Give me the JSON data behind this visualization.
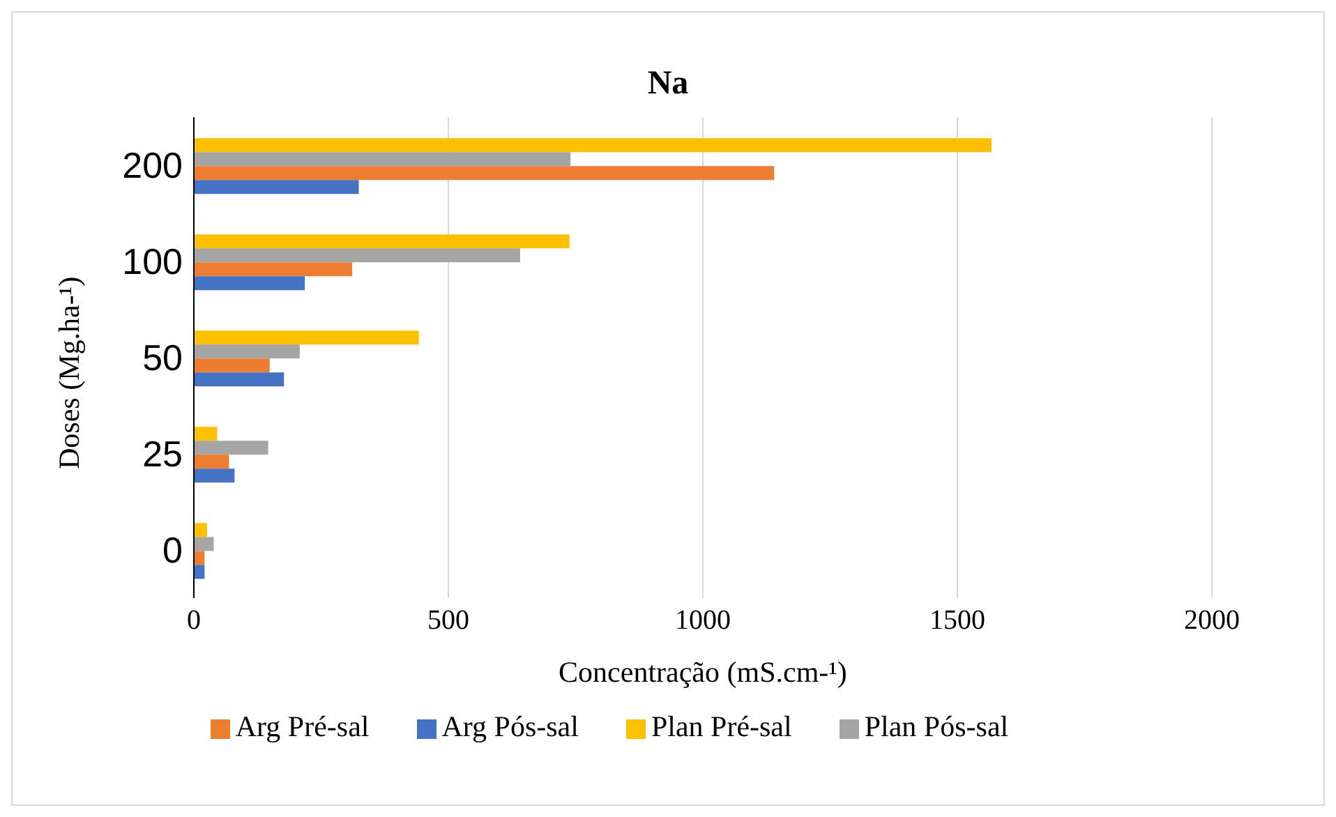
{
  "chart_data": {
    "type": "bar",
    "orientation": "horizontal",
    "title": "Na",
    "xlabel": "Concentração (mS.cm-¹)",
    "ylabel": "Doses (Mg.ha-¹)",
    "categories": [
      "200",
      "100",
      "50",
      "25",
      "0"
    ],
    "series": [
      {
        "name": "Plan Pré-sal",
        "color": "#ffc000",
        "values": [
          1567,
          738,
          442,
          46,
          26
        ]
      },
      {
        "name": "Plan Pós-sal",
        "color": "#a5a5a5",
        "values": [
          740,
          641,
          208,
          146,
          39
        ]
      },
      {
        "name": "Arg Pré-sal",
        "color": "#ed7d31",
        "values": [
          1140,
          311,
          149,
          69,
          21
        ]
      },
      {
        "name": "Arg Pós-sal",
        "color": "#4472c4",
        "values": [
          324,
          218,
          177,
          80,
          21
        ]
      }
    ],
    "xlim": [
      0,
      2000
    ],
    "xticks": [
      0,
      500,
      1000,
      1500,
      2000
    ],
    "grid": "x",
    "legend": "bottom"
  }
}
